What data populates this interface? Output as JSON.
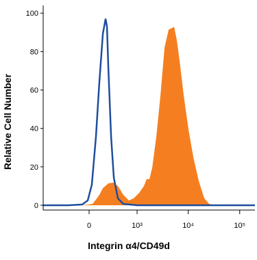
{
  "chart_data": {
    "type": "histogram-overlay",
    "xlabel": "Integrin α4/CD49d",
    "ylabel": "Relative Cell Number",
    "xscale": "biexponential",
    "xlim": [
      -910,
      197700
    ],
    "ylim": [
      -2.5,
      104
    ],
    "xticks": [
      0,
      {
        "value": 1000,
        "label": "10³"
      },
      {
        "value": 10000,
        "label": "10⁴"
      },
      {
        "value": 100000,
        "label": "10⁵"
      }
    ],
    "yticks": [
      0,
      20,
      40,
      60,
      80,
      100
    ],
    "series": [
      {
        "style": "filled",
        "color": "#f57f20",
        "x": [
          -74,
          36,
          74,
          113,
          155,
          230,
          307,
          396,
          522,
          683,
          856,
          1098,
          1367,
          1549,
          1756,
          1987,
          2390,
          2875,
          3458,
          4159,
          4690,
          5318,
          6020,
          6800,
          8180,
          10120,
          12560,
          16050,
          20500,
          25400,
          31500
        ],
        "values": [
          0,
          0.7,
          2.9,
          5.4,
          8.9,
          11.4,
          11.8,
          10,
          5.4,
          2.5,
          3.6,
          6.4,
          10,
          13.6,
          13.6,
          19.6,
          35.7,
          57.1,
          82.1,
          91.4,
          92.1,
          92.9,
          85.7,
          75,
          57.1,
          39.3,
          25,
          12.5,
          3.6,
          0.7,
          0
        ]
      },
      {
        "style": "line",
        "color": "#1f4e9c",
        "x": [
          -910,
          -251,
          -74,
          -15,
          29,
          74,
          113,
          155,
          191,
          210,
          230,
          272,
          319,
          396,
          522,
          1000,
          4690,
          197700
        ],
        "values": [
          0,
          0,
          0.4,
          2.5,
          10.7,
          35.7,
          64.3,
          89.3,
          97.1,
          92.9,
          71.4,
          35.7,
          14.3,
          3.6,
          0.7,
          0,
          0,
          0
        ]
      }
    ]
  }
}
